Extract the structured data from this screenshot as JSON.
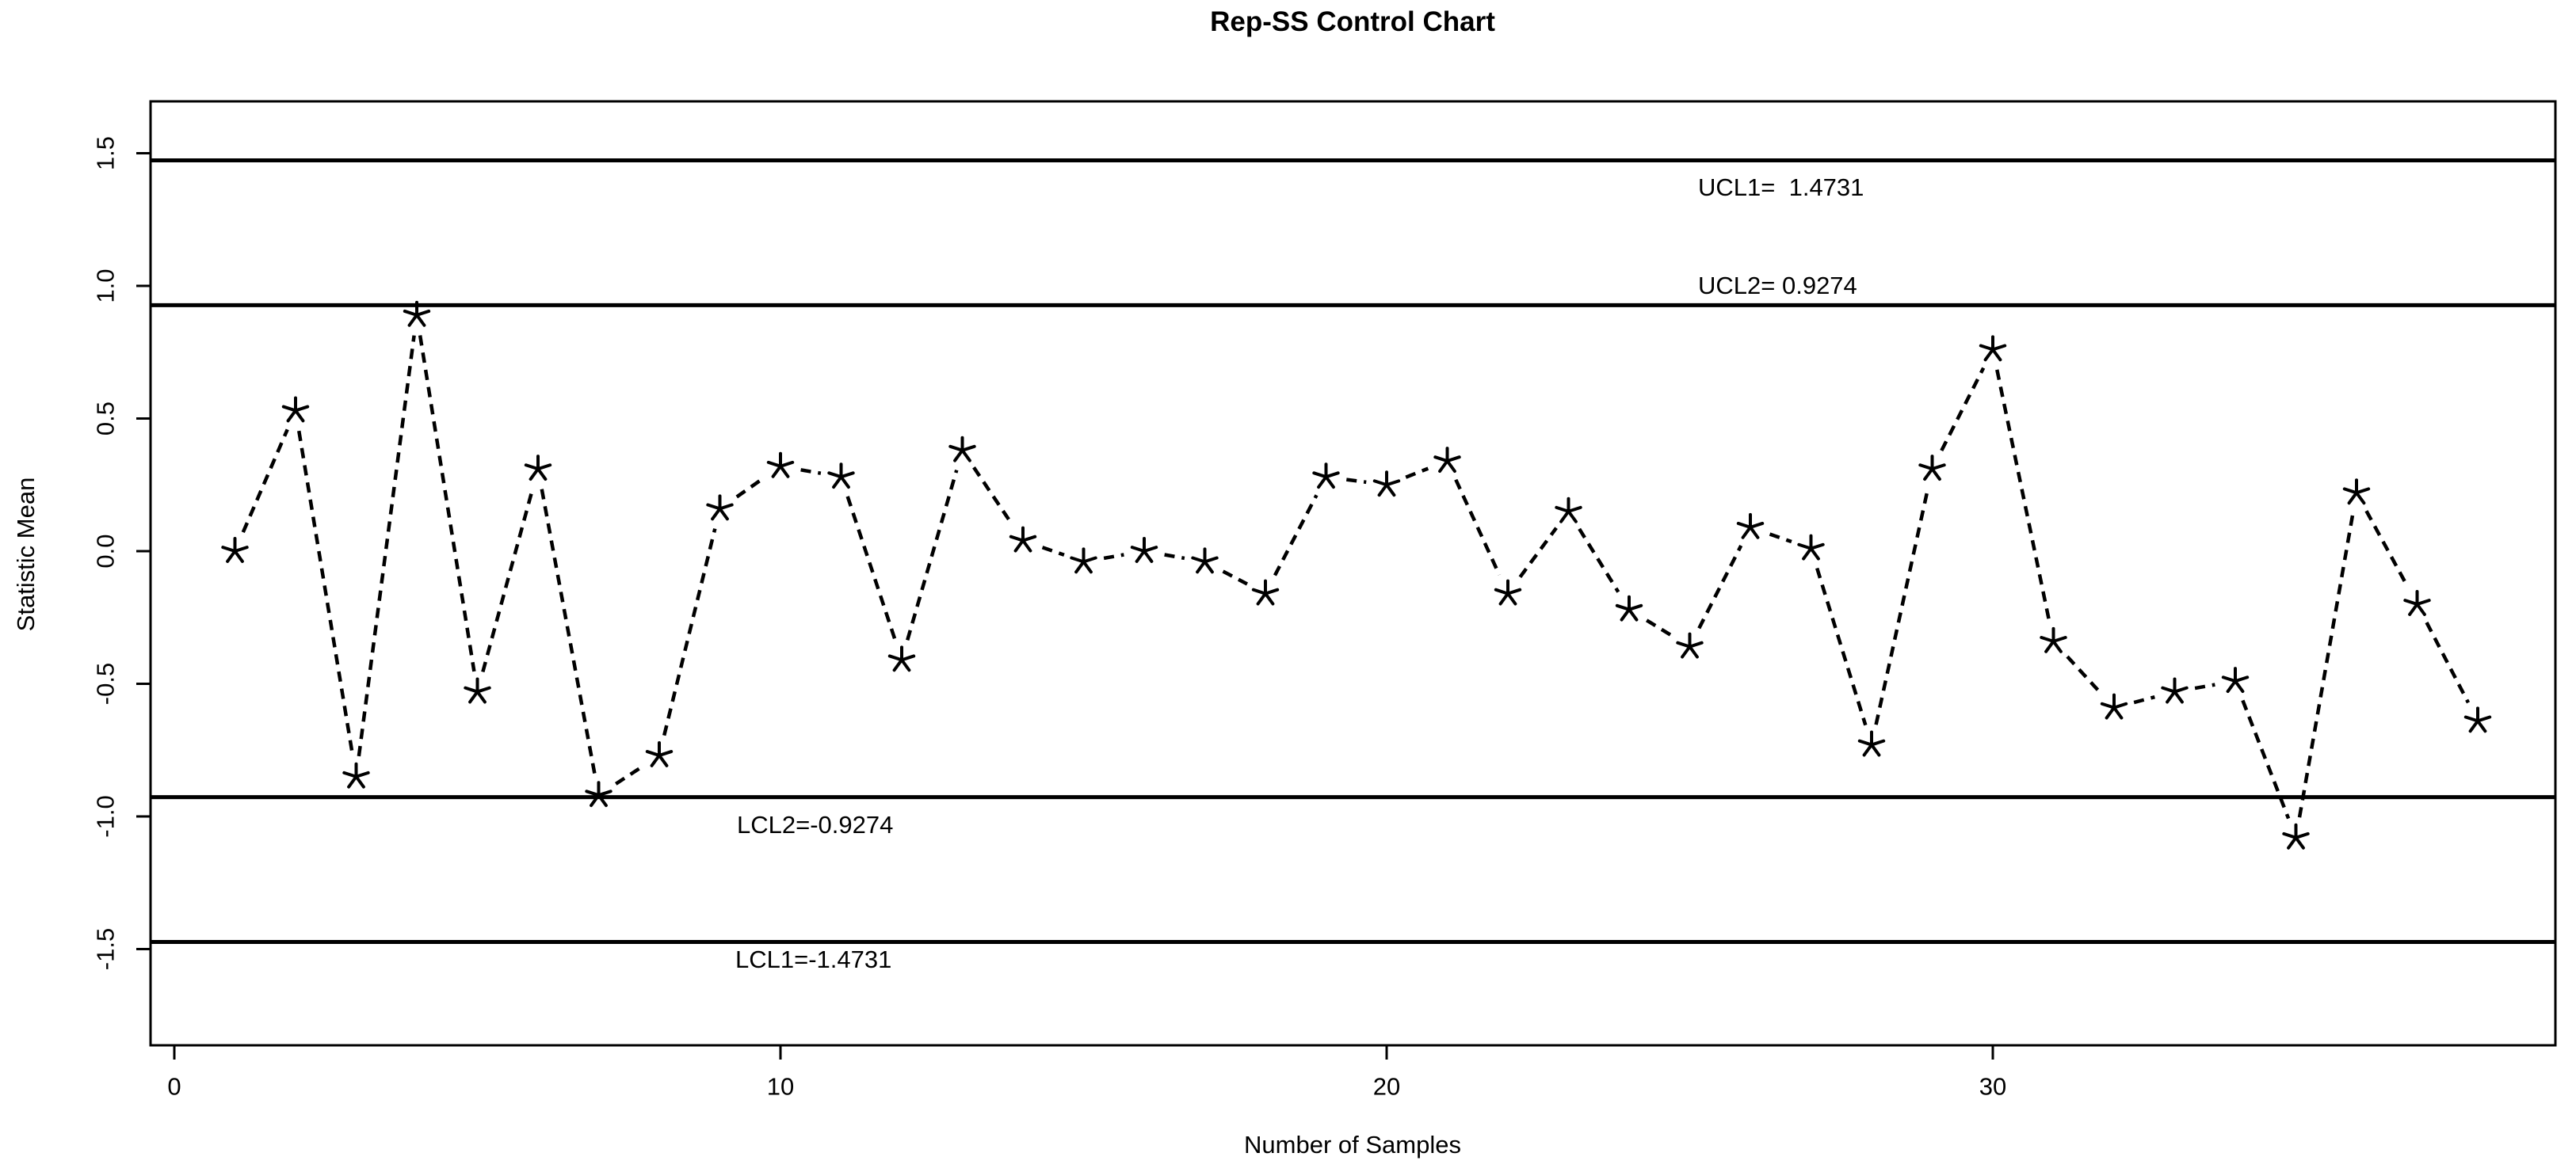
{
  "chart_data": {
    "type": "line",
    "title": "Rep-SS Control Chart",
    "xlabel": "Number of Samples",
    "ylabel": "Statistic Mean",
    "x": [
      1,
      2,
      3,
      4,
      5,
      6,
      7,
      8,
      9,
      10,
      11,
      12,
      13,
      14,
      15,
      16,
      17,
      18,
      19,
      20,
      21,
      22,
      23,
      24,
      25,
      26,
      27,
      28,
      29,
      30,
      31,
      32,
      33,
      34,
      35,
      36,
      37,
      38
    ],
    "series": [
      {
        "name": "Statistic Mean",
        "marker": "5-point-asterisk",
        "line_style": "dashed",
        "color": "#000000",
        "values": [
          0.0,
          0.53,
          -0.85,
          0.89,
          -0.53,
          0.31,
          -0.92,
          -0.77,
          0.16,
          0.32,
          0.28,
          -0.41,
          0.38,
          0.04,
          -0.04,
          0.0,
          -0.04,
          -0.16,
          0.28,
          0.25,
          0.34,
          -0.16,
          0.15,
          -0.22,
          -0.36,
          0.09,
          0.01,
          -0.73,
          0.31,
          0.76,
          -0.34,
          -0.59,
          -0.53,
          -0.49,
          -1.08,
          0.22,
          -0.2,
          -0.64
        ]
      }
    ],
    "control_limits": [
      {
        "name": "UCL1",
        "value": 1.4731,
        "label": "UCL1=  1.4731"
      },
      {
        "name": "UCL2",
        "value": 0.9274,
        "label": "UCL2= 0.9274"
      },
      {
        "name": "LCL2",
        "value": -0.9274,
        "label": "LCL2=-0.9274"
      },
      {
        "name": "LCL1",
        "value": -1.4731,
        "label": "LCL1=-1.4731"
      }
    ],
    "x_ticks": [
      0,
      10,
      20,
      30
    ],
    "x_tick_labels": [
      "0",
      "10",
      "20",
      "30"
    ],
    "y_ticks": [
      1.5,
      1.0,
      0.5,
      0.0,
      -0.5,
      -1.0,
      -1.5
    ],
    "y_tick_labels": [
      "1.5",
      "1.0",
      "0.5",
      "0.0",
      "-0.5",
      "-1.0",
      "-1.5"
    ],
    "xlim": [
      -0.4,
      39.3
    ],
    "ylim": [
      -1.86,
      1.7
    ],
    "grid": false,
    "legend": "none",
    "colors": {
      "foreground": "#000000",
      "background": "#ffffff"
    }
  }
}
